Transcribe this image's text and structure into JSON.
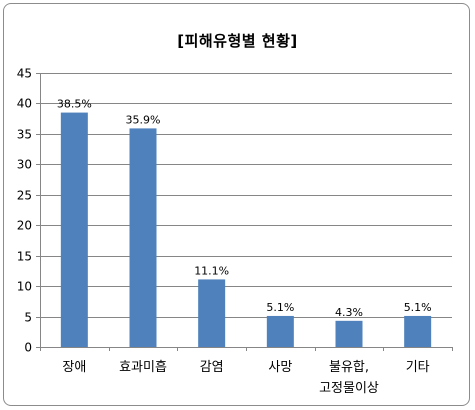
{
  "chart_data": {
    "type": "bar",
    "title": "[피해유형별 현황]",
    "categories": [
      [
        "장애"
      ],
      [
        "효과미흡"
      ],
      [
        "감염"
      ],
      [
        "사망"
      ],
      [
        "불유합,",
        "고정물이상"
      ],
      [
        "기타"
      ]
    ],
    "values": [
      38.5,
      35.9,
      11.1,
      5.1,
      4.3,
      5.1
    ],
    "data_labels": [
      "38.5%",
      "35.9%",
      "11.1%",
      "5.1%",
      "4.3%",
      "5.1%"
    ],
    "y_ticks": [
      "0",
      "5",
      "10",
      "15",
      "20",
      "25",
      "30",
      "35",
      "40",
      "45"
    ],
    "ylim": [
      0,
      45
    ],
    "grid": true,
    "legend": "none",
    "bar_color": "#4f81bd",
    "grid_color": "#868686"
  }
}
